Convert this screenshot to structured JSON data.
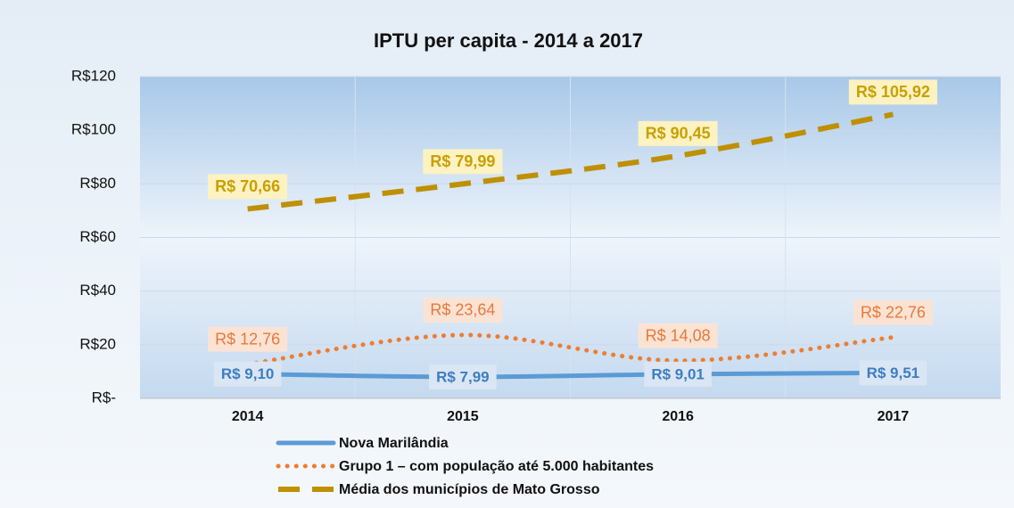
{
  "chart_data": {
    "type": "line",
    "title": "IPTU per capita - 2014 a 2017",
    "categories": [
      "2014",
      "2015",
      "2016",
      "2017"
    ],
    "ylim": [
      0,
      120
    ],
    "yticks": [
      {
        "value": 0,
        "label": "R$-"
      },
      {
        "value": 20,
        "label": "R$20"
      },
      {
        "value": 40,
        "label": "R$40"
      },
      {
        "value": 60,
        "label": "R$60"
      },
      {
        "value": 80,
        "label": "R$80"
      },
      {
        "value": 100,
        "label": "R$100"
      },
      {
        "value": 120,
        "label": "R$120"
      }
    ],
    "grid": true,
    "legend": "bottom",
    "series": [
      {
        "name": "Nova Marilândia",
        "color": "#5b9bd5",
        "style": "solid",
        "values": [
          9.1,
          7.99,
          9.01,
          9.51
        ],
        "value_labels": [
          "R$ 9,10",
          "R$ 7,99",
          "R$ 9,01",
          "R$ 9,51"
        ]
      },
      {
        "name": "Grupo 1 – com população até 5.000 habitantes",
        "color": "#ed7d31",
        "style": "dotted",
        "values": [
          12.76,
          23.64,
          14.08,
          22.76
        ],
        "value_labels": [
          "R$ 12,76",
          "R$ 23,64",
          "R$ 14,08",
          "R$ 22,76"
        ]
      },
      {
        "name": "Média dos municípios de Mato Grosso",
        "color": "#bf9000",
        "style": "dashed",
        "values": [
          70.66,
          79.99,
          90.45,
          105.92
        ],
        "value_labels": [
          "R$ 70,66",
          "R$ 79,99",
          "R$ 90,45",
          "R$ 105,92"
        ]
      }
    ]
  }
}
